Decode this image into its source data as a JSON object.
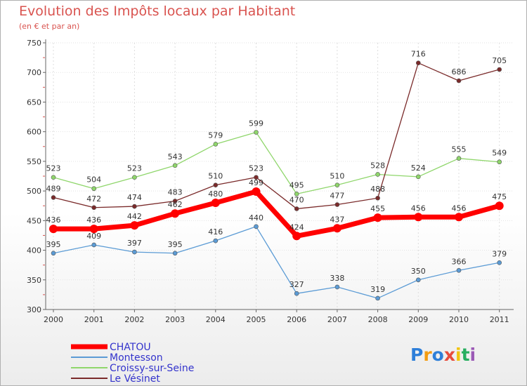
{
  "chart_data": {
    "type": "line",
    "title": "Evolution des Impôts locaux par Habitant",
    "subtitle": "(en € et par an)",
    "xlabel": "",
    "ylabel": "",
    "x": [
      "2000",
      "2001",
      "2002",
      "2003",
      "2004",
      "2005",
      "2006",
      "2007",
      "2008",
      "2009",
      "2010",
      "2011"
    ],
    "ylim": [
      300,
      750
    ],
    "yticks": [
      300,
      350,
      400,
      450,
      500,
      550,
      600,
      650,
      700,
      750
    ],
    "legend_position": "bottom-left",
    "series": [
      {
        "name": "CHATOU",
        "color": "#ff0000",
        "values": [
          436,
          436,
          442,
          462,
          480,
          499,
          424,
          437,
          455,
          456,
          456,
          475
        ],
        "labels": [
          "436",
          "436",
          "442",
          "462",
          "480",
          "499",
          "424",
          "437",
          "455",
          "456",
          "456",
          "475"
        ]
      },
      {
        "name": "Montesson",
        "color": "#5b9bd5",
        "values": [
          395,
          409,
          397,
          395,
          416,
          440,
          327,
          338,
          319,
          350,
          366,
          379
        ],
        "labels": [
          "395",
          "409",
          "397",
          "395",
          "416",
          "440",
          "327",
          "338",
          "319",
          "350",
          "366",
          "379"
        ]
      },
      {
        "name": "Croissy-sur-Seine",
        "color": "#8fd66b",
        "values": [
          523,
          504,
          523,
          543,
          579,
          599,
          495,
          510,
          528,
          524,
          555,
          549
        ],
        "labels": [
          "523",
          "504",
          "523",
          "543",
          "579",
          "599",
          "495",
          "510",
          "528",
          "524",
          "555",
          "549"
        ]
      },
      {
        "name": "Le Vésinet",
        "color": "#7a2a2a",
        "values": [
          489,
          472,
          474,
          483,
          510,
          523,
          470,
          477,
          488,
          716,
          686,
          705
        ],
        "labels": [
          "489",
          "472",
          "474",
          "483",
          "510",
          "523",
          "470",
          "477",
          "488",
          "716",
          "686",
          "705"
        ]
      }
    ]
  },
  "logo": {
    "letters": [
      "P",
      "r",
      "o",
      "x",
      "i",
      "t",
      "i"
    ],
    "colors": [
      "#2e7fd9",
      "#f39c12",
      "#2e7fd9",
      "#e74c3c",
      "#f1c40f",
      "#27ae60",
      "#9b59b6"
    ]
  }
}
